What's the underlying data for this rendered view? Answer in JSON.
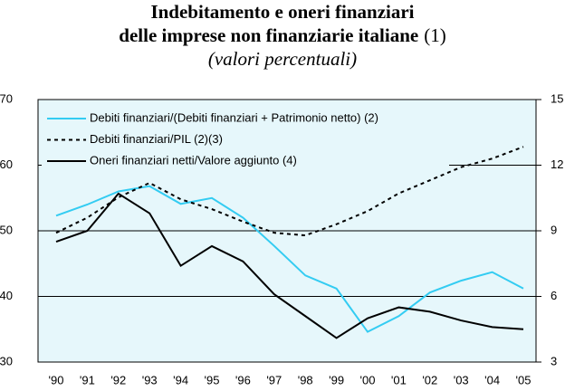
{
  "chart_data": {
    "type": "line",
    "title": [
      "Indebitamento e oneri finanziari",
      "delle imprese non finanziarie italiane"
    ],
    "title_note": "(1)",
    "subtitle": "(valori percentuali)",
    "categories": [
      "'90",
      "'91",
      "'92",
      "'93",
      "'94",
      "'95",
      "'96",
      "'97",
      "'98",
      "'99",
      "'00",
      "'01",
      "'02",
      "'03",
      "'04",
      "'05"
    ],
    "series": [
      {
        "name": "Debiti finanziari/(Debiti finanziari + Patrimonio netto) (2)",
        "color": "#33ccf2",
        "dash": "solid",
        "values": [
          52.3,
          54,
          56,
          56.8,
          54.1,
          55,
          52,
          47.7,
          43.2,
          41.2,
          34.6,
          37,
          40.6,
          42.4,
          43.7,
          41.2
        ]
      },
      {
        "name": "Debiti finanziari/PIL (2)(3)",
        "color": "#000000",
        "dash": "dotted",
        "values": [
          49.7,
          52,
          55.1,
          57.3,
          54.8,
          53.3,
          51.4,
          49.7,
          49.3,
          51,
          53,
          55.7,
          57.7,
          59.7,
          61,
          62.8
        ]
      },
      {
        "name": "Oneri finanziari netti/Valore aggiunto (4)",
        "color": "#000000",
        "dash": "solid",
        "axis": "y2",
        "values": [
          8.5,
          9.0,
          10.7,
          9.8,
          7.4,
          8.3,
          7.6,
          6.1,
          5.1,
          4.1,
          5.0,
          5.5,
          5.3,
          4.9,
          4.6,
          4.5
        ]
      }
    ],
    "ylim": [
      30,
      70
    ],
    "yticks": [
      30,
      40,
      50,
      60,
      70
    ],
    "y2lim": [
      3,
      15
    ],
    "y2ticks": [
      3,
      6,
      9,
      12,
      15
    ],
    "grid": true,
    "legend": "top-left"
  }
}
